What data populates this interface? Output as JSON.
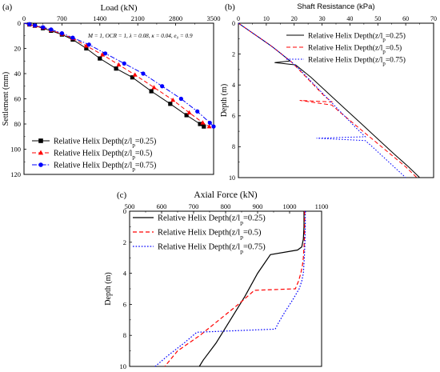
{
  "chart_data": [
    {
      "panel": "(a)",
      "type": "line",
      "title": "",
      "xlabel": "Load (kN)",
      "ylabel": "Settlement (mm)",
      "xlim": [
        0,
        3500
      ],
      "ylim": [
        0,
        120
      ],
      "y_inverted": true,
      "x_axis_position": "top",
      "xticks": [
        "0",
        "700",
        "1400",
        "2100",
        "2800",
        "3500"
      ],
      "yticks": [
        "0",
        "20",
        "40",
        "60",
        "80",
        "100",
        "120"
      ],
      "annotation": "M = 1, OCR = 1, λ = 0.08, κ = 0.04, e₀ = 0.9",
      "legend_position": "bottom-left",
      "series": [
        {
          "name": "Relative Helix Depth(z/lp=0.25)",
          "color": "#000000",
          "marker": "square",
          "dash": "solid",
          "x": [
            0,
            100,
            200,
            350,
            500,
            700,
            900,
            1150,
            1400,
            1700,
            2000,
            2350,
            2700,
            3000,
            3250,
            3320
          ],
          "y": [
            0,
            1,
            2,
            4,
            6,
            9,
            13,
            20,
            28,
            36,
            43,
            54,
            64,
            73,
            80,
            82
          ]
        },
        {
          "name": "Relative Helix Depth(z/lp=0.5)",
          "color": "#ff0000",
          "marker": "triangle",
          "dash": "dash",
          "x": [
            0,
            100,
            200,
            350,
            500,
            700,
            900,
            1150,
            1450,
            1750,
            2050,
            2400,
            2750,
            3050,
            3300,
            3420
          ],
          "y": [
            0,
            1,
            2,
            3.5,
            5.5,
            8.5,
            12,
            18,
            25,
            33,
            41,
            51,
            61,
            71,
            79,
            82
          ]
        },
        {
          "name": "Relative Helix Depth(z/lp=0.75)",
          "color": "#0000ff",
          "marker": "circle",
          "dash": "dashdot",
          "x": [
            0,
            100,
            200,
            350,
            500,
            700,
            900,
            1200,
            1500,
            1850,
            2200,
            2550,
            2900,
            3200,
            3430,
            3500
          ],
          "y": [
            0,
            0.8,
            1.8,
            3.2,
            5,
            8,
            11.5,
            17,
            24,
            32,
            40,
            50,
            60,
            70,
            79,
            82
          ]
        }
      ]
    },
    {
      "panel": "(b)",
      "type": "line",
      "title": "",
      "xlabel": "Shaft Resistance (kPa)",
      "ylabel": "Depth (m)",
      "xlim": [
        0,
        70
      ],
      "ylim": [
        0,
        10
      ],
      "y_inverted": true,
      "x_axis_position": "top",
      "xticks": [
        "0",
        "10",
        "20",
        "30",
        "40",
        "50",
        "60",
        "70"
      ],
      "yticks": [
        "0",
        "2",
        "4",
        "6",
        "8",
        "10"
      ],
      "legend_position": "top-right",
      "series": [
        {
          "name": "Relative Helix Depth(z/lp=0.25)",
          "color": "#000000",
          "dash": "solid",
          "x": [
            0,
            4,
            8,
            12,
            15.5,
            18.5,
            13,
            20.5,
            26,
            32,
            38,
            44,
            50,
            56,
            61,
            65
          ],
          "y": [
            0,
            0.5,
            1,
            1.5,
            2,
            2.45,
            2.55,
            2.7,
            3.5,
            4.5,
            5.5,
            6.5,
            7.5,
            8.5,
            9.3,
            10
          ]
        },
        {
          "name": "Relative Helix Depth(z/lp=0.5)",
          "color": "#ff0000",
          "dash": "dash",
          "x": [
            0,
            4,
            8,
            12,
            15.5,
            19,
            23,
            27,
            31,
            33.5,
            22,
            33.5,
            36,
            42,
            48,
            54,
            60,
            64
          ],
          "y": [
            0,
            0.5,
            1,
            1.5,
            2,
            2.5,
            3.25,
            4,
            4.75,
            5.1,
            5,
            5.3,
            5.7,
            6.6,
            7.5,
            8.4,
            9.3,
            10
          ]
        },
        {
          "name": "Relative Helix Depth(z/lp=0.75)",
          "color": "#0000ff",
          "dash": "dot",
          "x": [
            0,
            4,
            8,
            12,
            15.5,
            19,
            22,
            26,
            30,
            34,
            38,
            42,
            45.5,
            28,
            45.5,
            48,
            54,
            60
          ],
          "y": [
            0,
            0.5,
            1,
            1.5,
            2,
            2.5,
            3,
            3.75,
            4.5,
            5.25,
            6,
            6.75,
            7.35,
            7.45,
            7.6,
            8,
            9,
            10
          ]
        }
      ]
    },
    {
      "panel": "(c)",
      "type": "line",
      "title": "",
      "xlabel": "Axial Force (kN)",
      "ylabel": "Depth (m)",
      "xlim": [
        500,
        1100
      ],
      "ylim": [
        0,
        10
      ],
      "y_inverted": true,
      "x_axis_position": "top",
      "xticks": [
        "500",
        "600",
        "700",
        "800",
        "900",
        "1000",
        "1100"
      ],
      "yticks": [
        "0",
        "2",
        "4",
        "6",
        "8",
        "10"
      ],
      "legend_position": "top-left",
      "series": [
        {
          "name": "Relative Helix Depth(z/lp=0.25)",
          "color": "#000000",
          "dash": "solid",
          "x": [
            1045,
            1045,
            1043,
            1038,
            1025,
            940,
            900,
            860,
            815,
            770,
            730,
            718
          ],
          "y": [
            0,
            1,
            1.8,
            2.3,
            2.5,
            2.8,
            4,
            5.5,
            7,
            8.5,
            9.6,
            10
          ]
        },
        {
          "name": "Relative Helix Depth(z/lp=0.5)",
          "color": "#ff0000",
          "dash": "dash",
          "x": [
            1047,
            1047,
            1046,
            1043,
            1040,
            1035,
            1028,
            1018,
            890,
            840,
            780,
            720,
            650,
            610
          ],
          "y": [
            0,
            1,
            2,
            3,
            3.5,
            4,
            4.5,
            5,
            5.1,
            6,
            7,
            8,
            9,
            10
          ]
        },
        {
          "name": "Relative Helix Depth(z/lp=0.75)",
          "color": "#0000ff",
          "dash": "dot",
          "x": [
            1049,
            1049,
            1048,
            1046,
            1043,
            1038,
            1030,
            1010,
            985,
            965,
            955,
            710,
            670,
            620,
            580
          ],
          "y": [
            0,
            1,
            2,
            3,
            4,
            4.5,
            5,
            5.7,
            6.5,
            7.2,
            7.6,
            7.8,
            8.5,
            9.3,
            10
          ]
        }
      ]
    }
  ]
}
